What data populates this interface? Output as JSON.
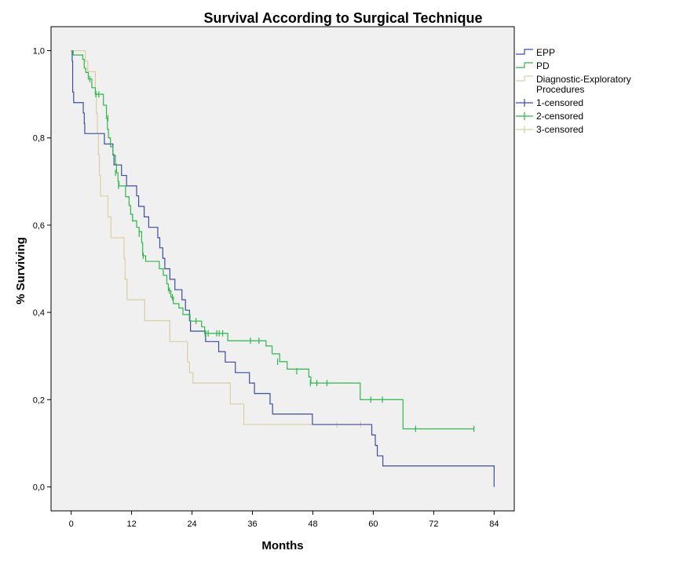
{
  "chart_data": {
    "type": "line",
    "title": "Survival According to Surgical Technique",
    "xlabel": "Months",
    "ylabel": "% Surviving",
    "xlim": [
      -4,
      88
    ],
    "ylim": [
      -0.055,
      1.055
    ],
    "x_ticks": [
      0,
      12,
      24,
      36,
      48,
      60,
      72,
      84
    ],
    "x_tick_labels": [
      "0",
      "12",
      "24",
      "36",
      "48",
      "60",
      "72",
      "84"
    ],
    "y_ticks": [
      0,
      0.2,
      0.4,
      0.6,
      0.8,
      1.0
    ],
    "y_tick_labels": [
      "0,0",
      "0,2",
      "0,4",
      "0,6",
      "0,8",
      "1,0"
    ],
    "grid": false,
    "legend_position": "right",
    "legend": [
      {
        "label": "EPP",
        "kind": "line",
        "color": "#3b4ea0"
      },
      {
        "label": "PD",
        "kind": "line",
        "color": "#2db84a"
      },
      {
        "label": "Diagnostic-Exploratory Procedures",
        "kind": "line",
        "color": "#d8d0a0"
      },
      {
        "label": "1-censored",
        "kind": "censor",
        "color": "#3b4ea0"
      },
      {
        "label": "2-censored",
        "kind": "censor",
        "color": "#2db84a"
      },
      {
        "label": "3-censored",
        "kind": "censor",
        "color": "#d8d0a0"
      }
    ],
    "series": [
      {
        "name": "EPP",
        "color": "#3b4ea0",
        "step": [
          [
            0,
            1.0
          ],
          [
            0.2,
            0.976
          ],
          [
            0.3,
            0.905
          ],
          [
            0.5,
            0.881
          ],
          [
            2.4,
            0.857
          ],
          [
            2.6,
            0.833
          ],
          [
            2.7,
            0.81
          ],
          [
            6.6,
            0.786
          ],
          [
            8.3,
            0.762
          ],
          [
            8.5,
            0.738
          ],
          [
            10.0,
            0.714
          ],
          [
            11.0,
            0.69
          ],
          [
            13.0,
            0.667
          ],
          [
            13.4,
            0.643
          ],
          [
            14.5,
            0.619
          ],
          [
            15.4,
            0.595
          ],
          [
            17.2,
            0.571
          ],
          [
            17.6,
            0.548
          ],
          [
            18.2,
            0.524
          ],
          [
            18.6,
            0.5
          ],
          [
            19.6,
            0.476
          ],
          [
            20.6,
            0.452
          ],
          [
            22.0,
            0.429
          ],
          [
            22.7,
            0.405
          ],
          [
            23.5,
            0.381
          ],
          [
            23.7,
            0.357
          ],
          [
            26.7,
            0.333
          ],
          [
            29.3,
            0.31
          ],
          [
            30.6,
            0.286
          ],
          [
            32.6,
            0.262
          ],
          [
            35.4,
            0.238
          ],
          [
            36.4,
            0.214
          ],
          [
            39.5,
            0.19
          ],
          [
            40.0,
            0.167
          ],
          [
            47.9,
            0.143
          ],
          [
            59.7,
            0.119
          ],
          [
            60.4,
            0.095
          ],
          [
            60.8,
            0.071
          ],
          [
            61.9,
            0.048
          ],
          [
            84.0,
            0.0
          ]
        ],
        "censored": []
      },
      {
        "name": "PD",
        "color": "#2db84a",
        "step": [
          [
            0,
            1.0
          ],
          [
            0.4,
            0.99
          ],
          [
            2.3,
            0.98
          ],
          [
            2.6,
            0.96
          ],
          [
            2.9,
            0.95
          ],
          [
            3.4,
            0.935
          ],
          [
            4.1,
            0.915
          ],
          [
            4.8,
            0.9
          ],
          [
            6.4,
            0.875
          ],
          [
            7.0,
            0.845
          ],
          [
            7.2,
            0.82
          ],
          [
            7.4,
            0.8
          ],
          [
            7.8,
            0.78
          ],
          [
            8.3,
            0.76
          ],
          [
            8.8,
            0.74
          ],
          [
            9.0,
            0.72
          ],
          [
            9.3,
            0.7
          ],
          [
            9.5,
            0.69
          ],
          [
            10.8,
            0.665
          ],
          [
            11.5,
            0.645
          ],
          [
            11.8,
            0.625
          ],
          [
            12.2,
            0.61
          ],
          [
            13.0,
            0.595
          ],
          [
            13.5,
            0.585
          ],
          [
            14.0,
            0.56
          ],
          [
            14.2,
            0.53
          ],
          [
            14.8,
            0.517
          ],
          [
            17.5,
            0.5
          ],
          [
            18.3,
            0.485
          ],
          [
            19.0,
            0.465
          ],
          [
            19.3,
            0.45
          ],
          [
            19.8,
            0.435
          ],
          [
            20.3,
            0.42
          ],
          [
            21.4,
            0.41
          ],
          [
            22.2,
            0.395
          ],
          [
            23.6,
            0.38
          ],
          [
            25.9,
            0.367
          ],
          [
            26.5,
            0.352
          ],
          [
            31.1,
            0.335
          ],
          [
            38.7,
            0.323
          ],
          [
            39.9,
            0.305
          ],
          [
            41.4,
            0.287
          ],
          [
            42.9,
            0.27
          ],
          [
            47.2,
            0.252
          ],
          [
            47.6,
            0.238
          ],
          [
            57.4,
            0.2
          ],
          [
            65.9,
            0.133
          ],
          [
            80.0,
            0.133
          ]
        ],
        "censored": [
          [
            3.7,
            0.935
          ],
          [
            4.9,
            0.9
          ],
          [
            5.5,
            0.9
          ],
          [
            7.3,
            0.845
          ],
          [
            8.8,
            0.72
          ],
          [
            9.4,
            0.69
          ],
          [
            12.2,
            0.615
          ],
          [
            13.5,
            0.58
          ],
          [
            14.3,
            0.53
          ],
          [
            19.5,
            0.45
          ],
          [
            20.1,
            0.435
          ],
          [
            24.8,
            0.38
          ],
          [
            26.6,
            0.352
          ],
          [
            27.2,
            0.352
          ],
          [
            28.9,
            0.352
          ],
          [
            29.4,
            0.352
          ],
          [
            30.1,
            0.352
          ],
          [
            35.6,
            0.335
          ],
          [
            37.3,
            0.335
          ],
          [
            41.0,
            0.287
          ],
          [
            44.8,
            0.265
          ],
          [
            47.5,
            0.238
          ],
          [
            48.8,
            0.238
          ],
          [
            50.8,
            0.238
          ],
          [
            59.5,
            0.2
          ],
          [
            61.8,
            0.2
          ],
          [
            68.4,
            0.133
          ],
          [
            80.0,
            0.133
          ]
        ]
      },
      {
        "name": "Diagnostic-Exploratory Procedures",
        "color": "#d8d0a0",
        "step": [
          [
            0,
            1.0
          ],
          [
            2.8,
            0.976
          ],
          [
            3.3,
            0.952
          ],
          [
            4.8,
            0.905
          ],
          [
            5.0,
            0.857
          ],
          [
            5.2,
            0.81
          ],
          [
            5.4,
            0.762
          ],
          [
            5.6,
            0.714
          ],
          [
            5.8,
            0.667
          ],
          [
            7.3,
            0.619
          ],
          [
            7.9,
            0.571
          ],
          [
            10.5,
            0.524
          ],
          [
            10.7,
            0.476
          ],
          [
            11.1,
            0.429
          ],
          [
            14.6,
            0.381
          ],
          [
            19.6,
            0.333
          ],
          [
            23.1,
            0.286
          ],
          [
            23.5,
            0.262
          ],
          [
            24.2,
            0.238
          ],
          [
            31.6,
            0.19
          ],
          [
            34.3,
            0.143
          ],
          [
            57.5,
            0.143
          ]
        ],
        "censored": [
          [
            52.8,
            0.143
          ],
          [
            57.5,
            0.143
          ]
        ]
      }
    ]
  }
}
